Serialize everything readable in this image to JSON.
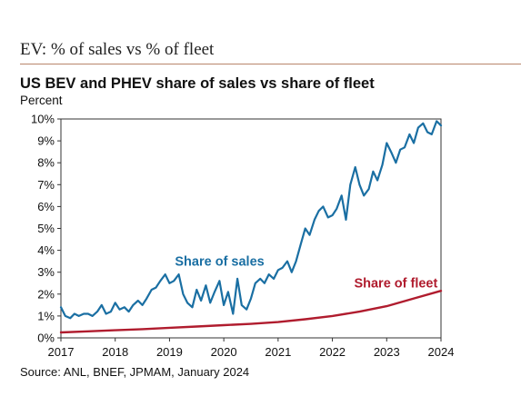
{
  "page": {
    "heading": "EV: % of sales vs % of fleet",
    "source": "Source: ANL, BNEF, JPMAM, January 2024"
  },
  "chart_data": {
    "type": "line",
    "title": "US BEV and PHEV share of sales vs share of fleet",
    "ylabel": "Percent",
    "xlabel": "",
    "xlim": [
      2017,
      2024
    ],
    "ylim": [
      0,
      10
    ],
    "x_ticks": [
      "2017",
      "2018",
      "2019",
      "2020",
      "2021",
      "2022",
      "2023",
      "2024"
    ],
    "y_ticks": [
      "0%",
      "1%",
      "2%",
      "3%",
      "4%",
      "5%",
      "6%",
      "7%",
      "8%",
      "9%",
      "10%"
    ],
    "grid": false,
    "series": [
      {
        "name": "Share of sales",
        "color": "#1a6fa3",
        "x": [
          2017.0,
          2017.08,
          2017.17,
          2017.25,
          2017.33,
          2017.42,
          2017.5,
          2017.58,
          2017.67,
          2017.75,
          2017.83,
          2017.92,
          2018.0,
          2018.08,
          2018.17,
          2018.25,
          2018.33,
          2018.42,
          2018.5,
          2018.58,
          2018.67,
          2018.75,
          2018.83,
          2018.92,
          2019.0,
          2019.08,
          2019.17,
          2019.25,
          2019.33,
          2019.42,
          2019.5,
          2019.58,
          2019.67,
          2019.75,
          2019.83,
          2019.92,
          2020.0,
          2020.08,
          2020.17,
          2020.25,
          2020.33,
          2020.42,
          2020.5,
          2020.58,
          2020.67,
          2020.75,
          2020.83,
          2020.92,
          2021.0,
          2021.08,
          2021.17,
          2021.25,
          2021.33,
          2021.42,
          2021.5,
          2021.58,
          2021.67,
          2021.75,
          2021.83,
          2021.92,
          2022.0,
          2022.08,
          2022.17,
          2022.25,
          2022.33,
          2022.42,
          2022.5,
          2022.58,
          2022.67,
          2022.75,
          2022.83,
          2022.92,
          2023.0,
          2023.08,
          2023.17,
          2023.25,
          2023.33,
          2023.42,
          2023.5,
          2023.58,
          2023.67,
          2023.75,
          2023.83,
          2023.92,
          2024.0
        ],
        "values": [
          1.4,
          1.0,
          0.9,
          1.1,
          1.0,
          1.1,
          1.1,
          1.0,
          1.2,
          1.5,
          1.1,
          1.2,
          1.6,
          1.3,
          1.4,
          1.2,
          1.5,
          1.7,
          1.5,
          1.8,
          2.2,
          2.3,
          2.6,
          2.9,
          2.5,
          2.6,
          2.9,
          2.0,
          1.6,
          1.4,
          2.2,
          1.7,
          2.4,
          1.6,
          2.1,
          2.6,
          1.5,
          2.1,
          1.1,
          2.7,
          1.5,
          1.3,
          1.8,
          2.5,
          2.7,
          2.5,
          2.9,
          2.7,
          3.1,
          3.2,
          3.5,
          3.0,
          3.5,
          4.3,
          5.0,
          4.7,
          5.4,
          5.8,
          6.0,
          5.5,
          5.6,
          5.9,
          6.5,
          5.4,
          7.0,
          7.8,
          7.0,
          6.5,
          6.8,
          7.6,
          7.2,
          7.9,
          8.9,
          8.5,
          8.0,
          8.6,
          8.7,
          9.3,
          8.9,
          9.6,
          9.8,
          9.4,
          9.3,
          9.9,
          9.7
        ]
      },
      {
        "name": "Share of fleet",
        "color": "#b01c2e",
        "x": [
          2017.0,
          2017.5,
          2018.0,
          2018.5,
          2019.0,
          2019.5,
          2020.0,
          2020.5,
          2021.0,
          2021.5,
          2022.0,
          2022.5,
          2023.0,
          2023.5,
          2024.0
        ],
        "values": [
          0.25,
          0.3,
          0.35,
          0.4,
          0.46,
          0.52,
          0.58,
          0.64,
          0.72,
          0.85,
          1.0,
          1.2,
          1.45,
          1.8,
          2.15
        ]
      }
    ],
    "annotations": [
      {
        "text": "Share of sales",
        "x": 2019.1,
        "y": 3.3,
        "color": "#1a6fa3"
      },
      {
        "text": "Share of fleet",
        "x": 2022.4,
        "y": 2.3,
        "color": "#b01c2e"
      }
    ]
  }
}
